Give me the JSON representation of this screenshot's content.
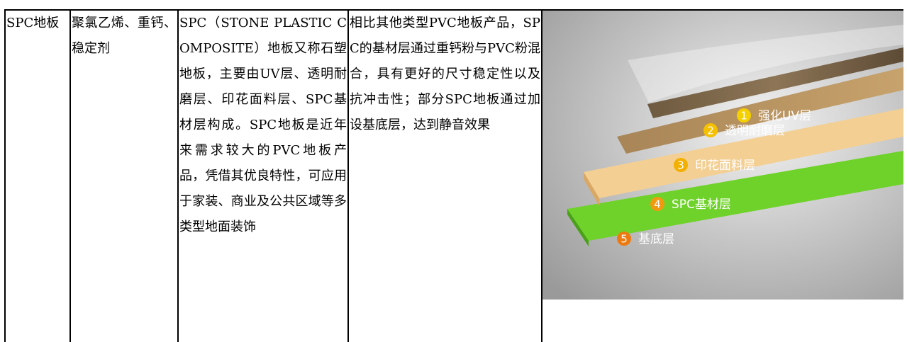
{
  "table": {
    "rows": [
      [
        "SPC地板",
        "聚氯乙烯、重钙、稳定剂",
        "SPC（STONE PLASTIC COMPOSITE）地板又称石塑地板，主要由UV层、透明耐磨层、印花面料层、SPC基材层构成。SPC地板是近年来需求较大的PVC地板产品，凭借其优良特性，可应用于家装、商业及公共区域等多类型地面装饰",
        "相比其他类型PVC地板产品，SPC的基材层通过重钙粉与PVC粉混合，具有更好的尺寸稳定性以及抗冲击性；部分SPC地板通过加设基底层，达到静音效果"
      ]
    ]
  },
  "image": {
    "layers": [
      {
        "number": "1",
        "label": "强化UV层"
      },
      {
        "number": "2",
        "label": "透明耐磨层"
      },
      {
        "number": "3",
        "label": "印花面料层"
      },
      {
        "number": "4",
        "label": "SPC基材层"
      },
      {
        "number": "5",
        "label": "基底层"
      }
    ]
  }
}
